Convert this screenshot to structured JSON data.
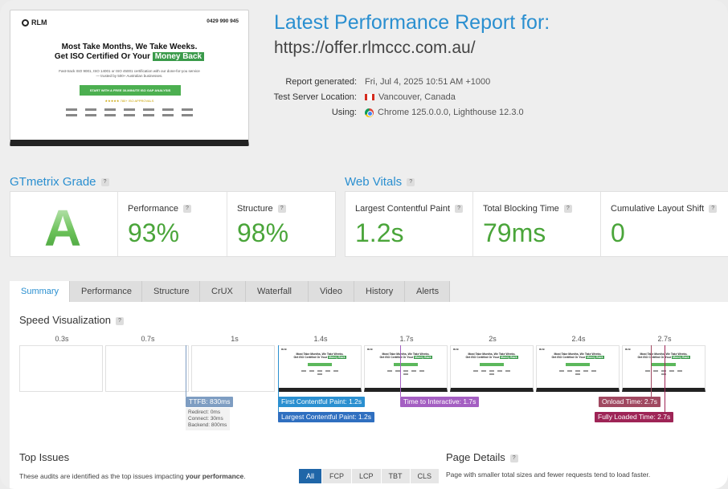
{
  "report": {
    "title": "Latest Performance Report for:",
    "url": "https://offer.rlmccc.com.au/",
    "meta_labels": [
      "Report generated:",
      "Test Server Location:",
      "Using:"
    ],
    "generated": "Fri, Jul 4, 2025 10:51 AM +1000",
    "location": "Vancouver, Canada",
    "using": "Chrome 125.0.0.0, Lighthouse 12.3.0"
  },
  "thumbnail": {
    "logo": "RLM",
    "phone": "0429 990 945",
    "headline_1": "Most Take Months, We Take Weeks.",
    "headline_2": "Get ISO Certified Or Your",
    "headline_highlight": "Money Back",
    "subtext": "Fast-track ISO 9001, ISO 14001 or ISO 45001 certification with our done-for-you service — trusted by 500+ Australian businesses.",
    "cta": "START WITH A FREE 30-MINUTE ISO GAP ANALYSIS",
    "stars": "★★★★★ 780+ ISO APPROVALS"
  },
  "grade": {
    "heading": "GTmetrix Grade",
    "letter": "A",
    "performance_label": "Performance",
    "performance": "93%",
    "structure_label": "Structure",
    "structure": "98%"
  },
  "vitals": {
    "heading": "Web Vitals",
    "lcp_label": "Largest Contentful Paint",
    "lcp": "1.2s",
    "tbt_label": "Total Blocking Time",
    "tbt": "79ms",
    "cls_label": "Cumulative Layout Shift",
    "cls": "0"
  },
  "tabs": [
    "Summary",
    "Performance",
    "Structure",
    "CrUX",
    "Waterfall",
    "Video",
    "History",
    "Alerts"
  ],
  "speed": {
    "heading": "Speed Visualization",
    "times": [
      "0.3s",
      "0.7s",
      "1s",
      "1.4s",
      "1.7s",
      "2s",
      "2.4s",
      "2.7s"
    ],
    "ttfb": "TTFB: 830ms",
    "ttfb_details": [
      "Redirect: 0ms",
      "Connect: 30ms",
      "Backend: 800ms"
    ],
    "fcp": "First Contentful Paint: 1.2s",
    "lcp": "Largest Contentful Paint: 1.2s",
    "tti": "Time to Interactive: 1.7s",
    "onload": "Onload Time: 2.7s",
    "fully_loaded": "Fully Loaded Time: 2.7s",
    "colors": {
      "ttfb": "#7e9dc2",
      "fcp": "#2a8fd0",
      "lcp": "#2f6fc0",
      "tti": "#a45fc2",
      "onload": "#a04860",
      "fully": "#9e2456"
    }
  },
  "top_issues": {
    "heading": "Top Issues",
    "desc_prefix": "These audits are identified as the top issues impacting ",
    "desc_bold": "your performance",
    "desc_suffix": ".",
    "filters": [
      "All",
      "FCP",
      "LCP",
      "TBT",
      "CLS"
    ]
  },
  "page_details": {
    "heading": "Page Details",
    "desc": "Page with smaller total sizes and fewer requests tend to load faster."
  }
}
